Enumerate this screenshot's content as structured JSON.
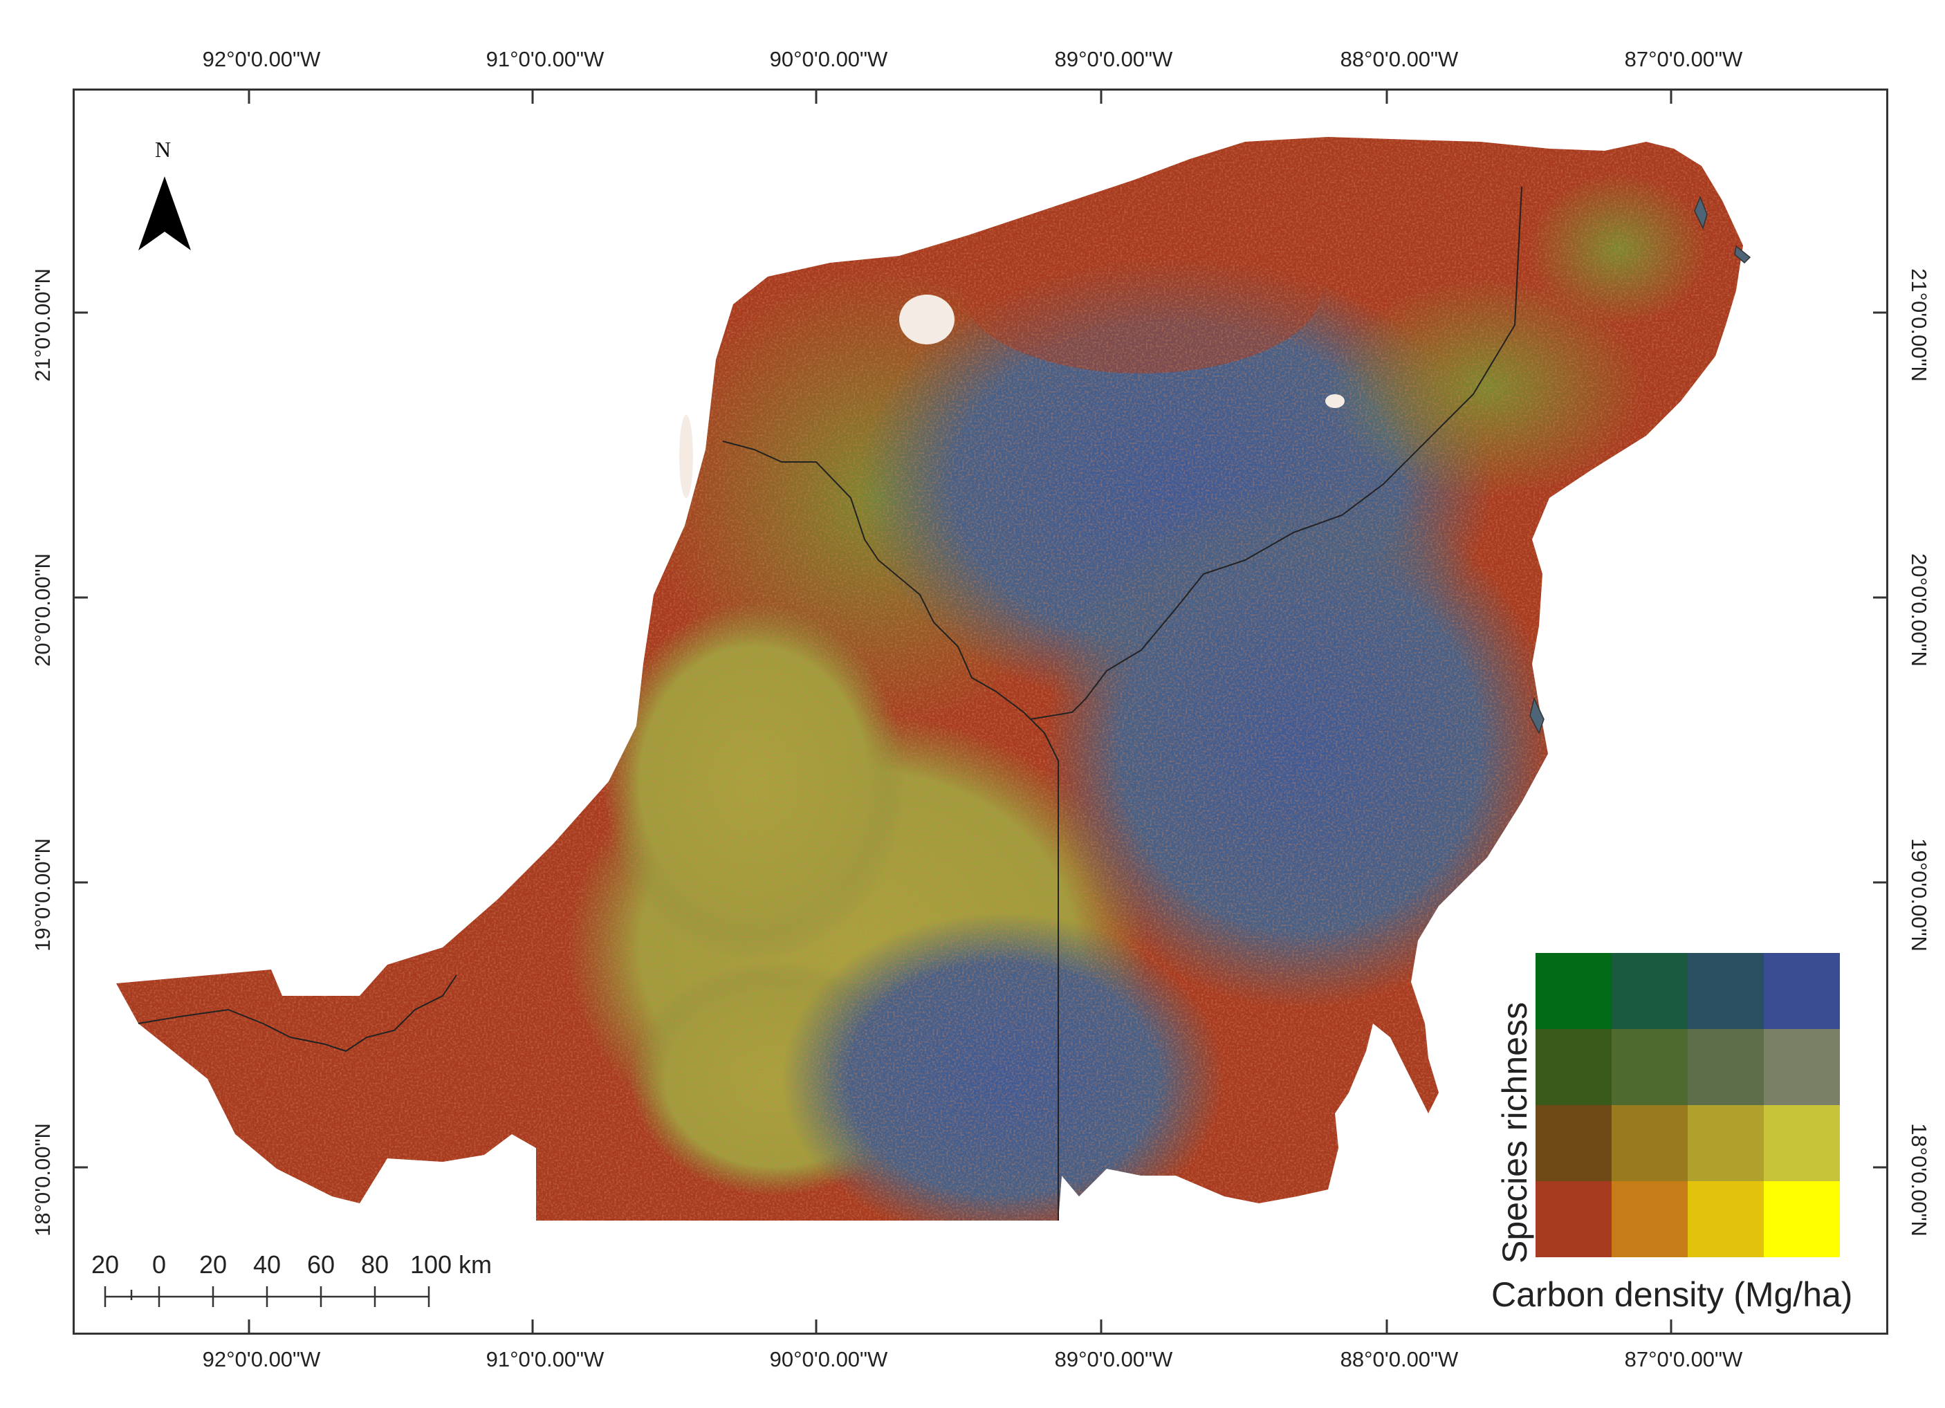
{
  "map": {
    "north_label": "N",
    "lon_labels": [
      "92°0'0.00\"W",
      "91°0'0.00\"W",
      "90°0'0.00\"W",
      "89°0'0.00\"W",
      "88°0'0.00\"W",
      "87°0'0.00\"W"
    ],
    "lat_labels": [
      "21°0'0.00\"N",
      "20°0'0.00\"N",
      "19°0'0.00\"N",
      "18°0'0.00\"N"
    ],
    "scale_bar": {
      "labels": [
        "20",
        "0",
        "20",
        "40",
        "60",
        "80",
        "100 km"
      ]
    },
    "legend": {
      "y_label": "Species richness",
      "x_label": "Carbon density (Mg/ha)",
      "grid_colors": [
        [
          "#006a16",
          "#1a5a3f",
          "#2a4f61",
          "#3a4d92"
        ],
        [
          "#3a5a1c",
          "#4f6a2f",
          "#5f6e4a",
          "#7a8066"
        ],
        [
          "#6e4a16",
          "#9a7a1e",
          "#b0a02c",
          "#c8c43a"
        ],
        [
          "#a73b1f",
          "#c77d17",
          "#e2c20d",
          "#ffff00"
        ]
      ]
    },
    "colors": {
      "red_low": "#a83a1f",
      "olive": "#7f8a2f",
      "yellow_olive": "#a3a33b",
      "blue": "#3e5a95",
      "blue_grey": "#4d6577",
      "border": "#333333"
    }
  }
}
